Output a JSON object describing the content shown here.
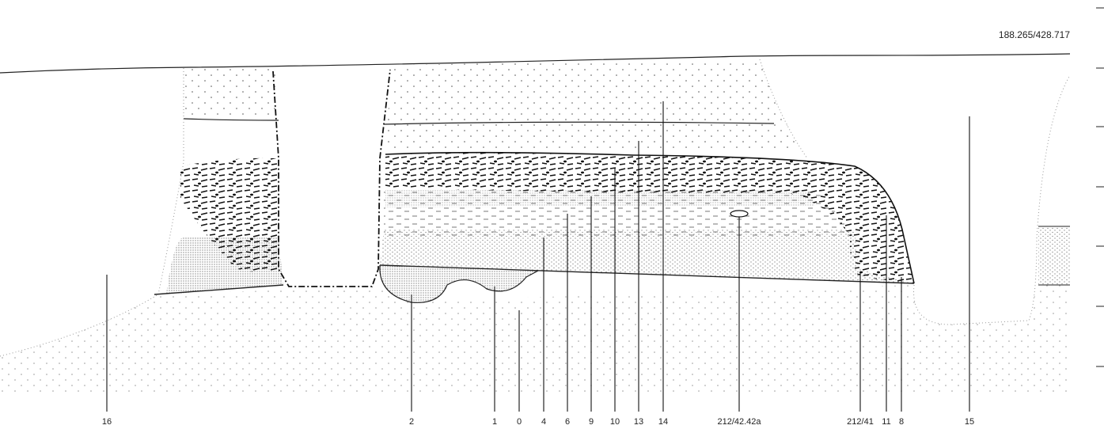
{
  "coordinate": "188.265/428.717",
  "labels": [
    "16",
    "2",
    "1",
    "0",
    "4",
    "6",
    "9",
    "10",
    "13",
    "14",
    "212/42.42a",
    "212/41",
    "11",
    "8",
    "15"
  ]
}
